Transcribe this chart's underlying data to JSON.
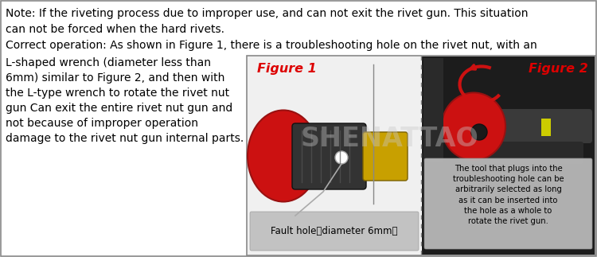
{
  "title_text_line1": "Note: If the riveting process due to improper use, and can not exit the rivet gun. This situation",
  "title_text_line2": "can not be forced when the hard rivets.",
  "title_text_line3": "Correct operation: As shown in Figure 1, there is a troubleshooting hole on the rivet nut, with an",
  "left_text_lines": [
    "L-shaped wrench (diameter less than",
    "6mm) similar to Figure 2, and then with",
    "the L-type wrench to rotate the rivet nut",
    "gun Can exit the entire rivet nut gun and",
    "not because of improper operation",
    "damage to the rivet nut gun internal parts."
  ],
  "figure1_label": "Figure 1",
  "figure2_label": "Figure 2",
  "fault_hole_text": "Fault hole（diameter 6mm）",
  "right_caption": "The tool that plugs into the\ntroubleshooting hole can be\narbitrarily selected as long\nas it can be inserted into\nthe hole as a whole to\nrotate the rivet gun.",
  "watermark_text": "SHENATTAO",
  "border_color": "#888888",
  "figure_label_color": "#dd0000",
  "text_color": "#000000",
  "watermark_color": "#c8c8c8",
  "background_color": "#ffffff",
  "font_size_main": 10.0,
  "font_size_caption": 7.2,
  "font_size_figure_label": 11.5
}
